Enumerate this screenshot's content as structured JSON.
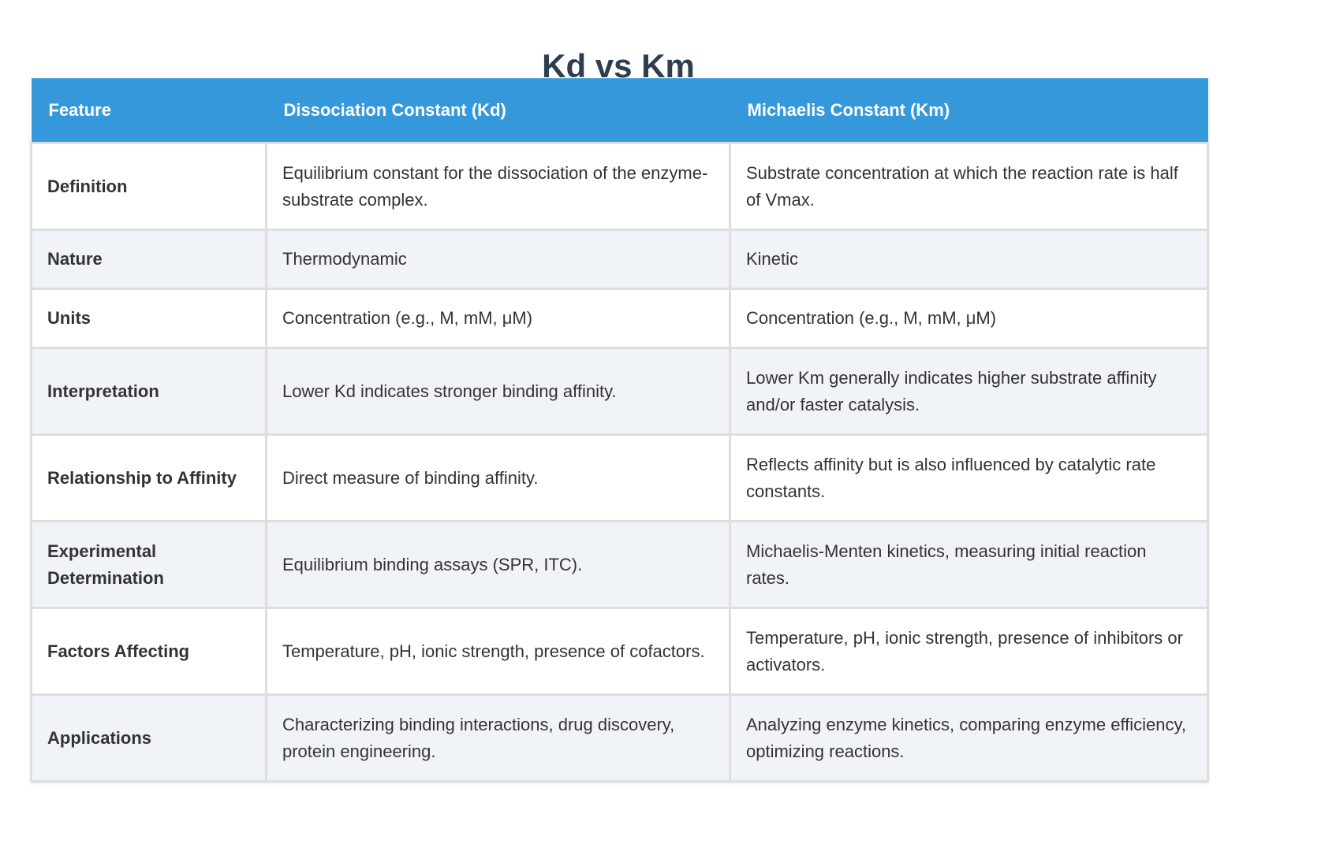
{
  "page": {
    "title": "Kd vs Km"
  },
  "table": {
    "headers": [
      "Feature",
      "Dissociation Constant (Kd)",
      "Michaelis Constant (Km)"
    ],
    "rows": [
      {
        "feature": "Definition",
        "kd": "Equilibrium constant for the dissociation of the enzyme-substrate complex.",
        "km": "Substrate concentration at which the reaction rate is half of Vmax."
      },
      {
        "feature": "Nature",
        "kd": "Thermodynamic",
        "km": "Kinetic"
      },
      {
        "feature": "Units",
        "kd": "Concentration (e.g., M, mM, μM)",
        "km": "Concentration (e.g., M, mM, μM)"
      },
      {
        "feature": "Interpretation",
        "kd": "Lower Kd indicates stronger binding affinity.",
        "km": "Lower Km generally indicates higher substrate affinity and/or faster catalysis."
      },
      {
        "feature": "Relationship to Affinity",
        "kd": "Direct measure of binding affinity.",
        "km": "Reflects affinity but is also influenced by catalytic rate constants."
      },
      {
        "feature": "Experimental Determination",
        "kd": "Equilibrium binding assays (SPR, ITC).",
        "km": "Michaelis-Menten kinetics, measuring initial reaction rates."
      },
      {
        "feature": "Factors Affecting",
        "kd": "Temperature, pH, ionic strength, presence of cofactors.",
        "km": "Temperature, pH, ionic strength, presence of inhibitors or activators."
      },
      {
        "feature": "Applications",
        "kd": "Characterizing binding interactions, drug discovery, protein engineering.",
        "km": "Analyzing enzyme kinetics, comparing enzyme efficiency, optimizing reactions."
      }
    ]
  },
  "colors": {
    "title": "#2c3e50",
    "header_bg": "#3498db",
    "header_text": "#ffffff",
    "row_alt_bg": "#f0f4f8",
    "row_bg": "#ffffff",
    "border": "#dedede",
    "body_text": "#333333"
  }
}
